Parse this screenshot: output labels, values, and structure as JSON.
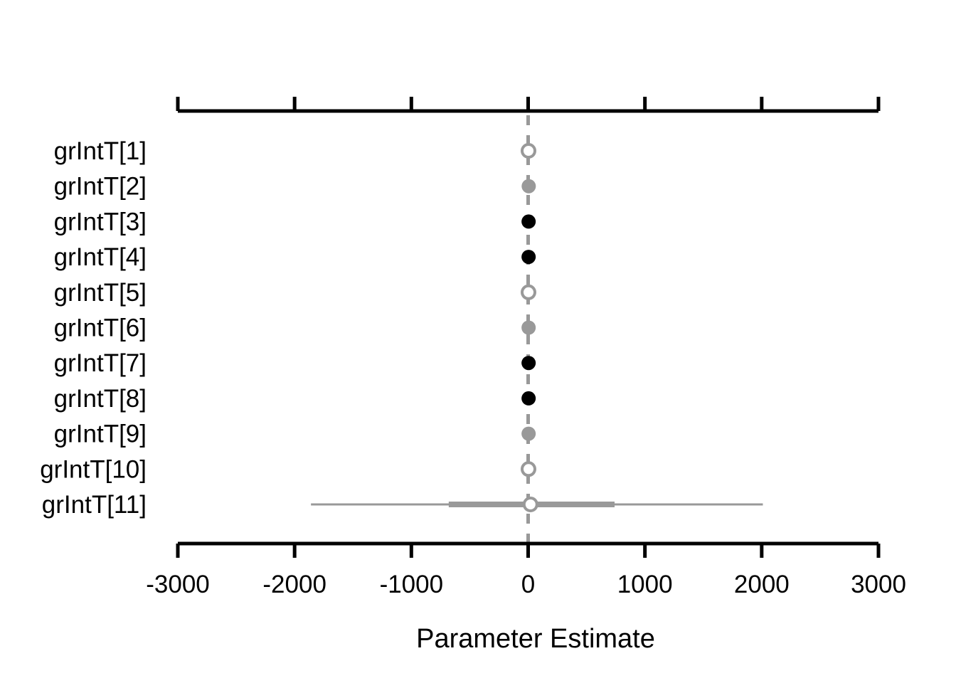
{
  "chart_data": {
    "type": "scatter",
    "xlabel": "Parameter Estimate",
    "xlim": [
      -3000,
      3000
    ],
    "xticks": [
      -3000,
      -2000,
      -1000,
      0,
      1000,
      2000,
      3000
    ],
    "reference_line": 0,
    "colors": {
      "gray": "#999999",
      "black": "#000000",
      "white": "#ffffff"
    },
    "rows": [
      {
        "label": "grIntT[1]",
        "estimate": 3,
        "style": "open",
        "inner": [
          -2,
          6
        ],
        "outer": [
          -4,
          8
        ]
      },
      {
        "label": "grIntT[2]",
        "estimate": 5,
        "style": "gray",
        "inner": [
          -5,
          10
        ],
        "outer": [
          -10,
          15
        ]
      },
      {
        "label": "grIntT[3]",
        "estimate": 4,
        "style": "black",
        "inner": [
          -3,
          8
        ],
        "outer": [
          -5,
          10
        ]
      },
      {
        "label": "grIntT[4]",
        "estimate": 4,
        "style": "black",
        "inner": [
          -3,
          8
        ],
        "outer": [
          -5,
          10
        ]
      },
      {
        "label": "grIntT[5]",
        "estimate": 3,
        "style": "open",
        "inner": [
          -2,
          6
        ],
        "outer": [
          -4,
          8
        ]
      },
      {
        "label": "grIntT[6]",
        "estimate": 4,
        "style": "gray",
        "inner": [
          -3,
          9
        ],
        "outer": [
          -8,
          14
        ]
      },
      {
        "label": "grIntT[7]",
        "estimate": 4,
        "style": "black",
        "inner": [
          -3,
          8
        ],
        "outer": [
          -5,
          10
        ]
      },
      {
        "label": "grIntT[8]",
        "estimate": 4,
        "style": "black",
        "inner": [
          -3,
          8
        ],
        "outer": [
          -5,
          10
        ]
      },
      {
        "label": "grIntT[9]",
        "estimate": 4,
        "style": "gray",
        "inner": [
          -4,
          10
        ],
        "outer": [
          -10,
          15
        ]
      },
      {
        "label": "grIntT[10]",
        "estimate": 3,
        "style": "open",
        "inner": [
          -2,
          6
        ],
        "outer": [
          -4,
          8
        ]
      },
      {
        "label": "grIntT[11]",
        "estimate": 20,
        "style": "open",
        "inner": [
          -680,
          740
        ],
        "outer": [
          -1860,
          2010
        ]
      }
    ]
  }
}
